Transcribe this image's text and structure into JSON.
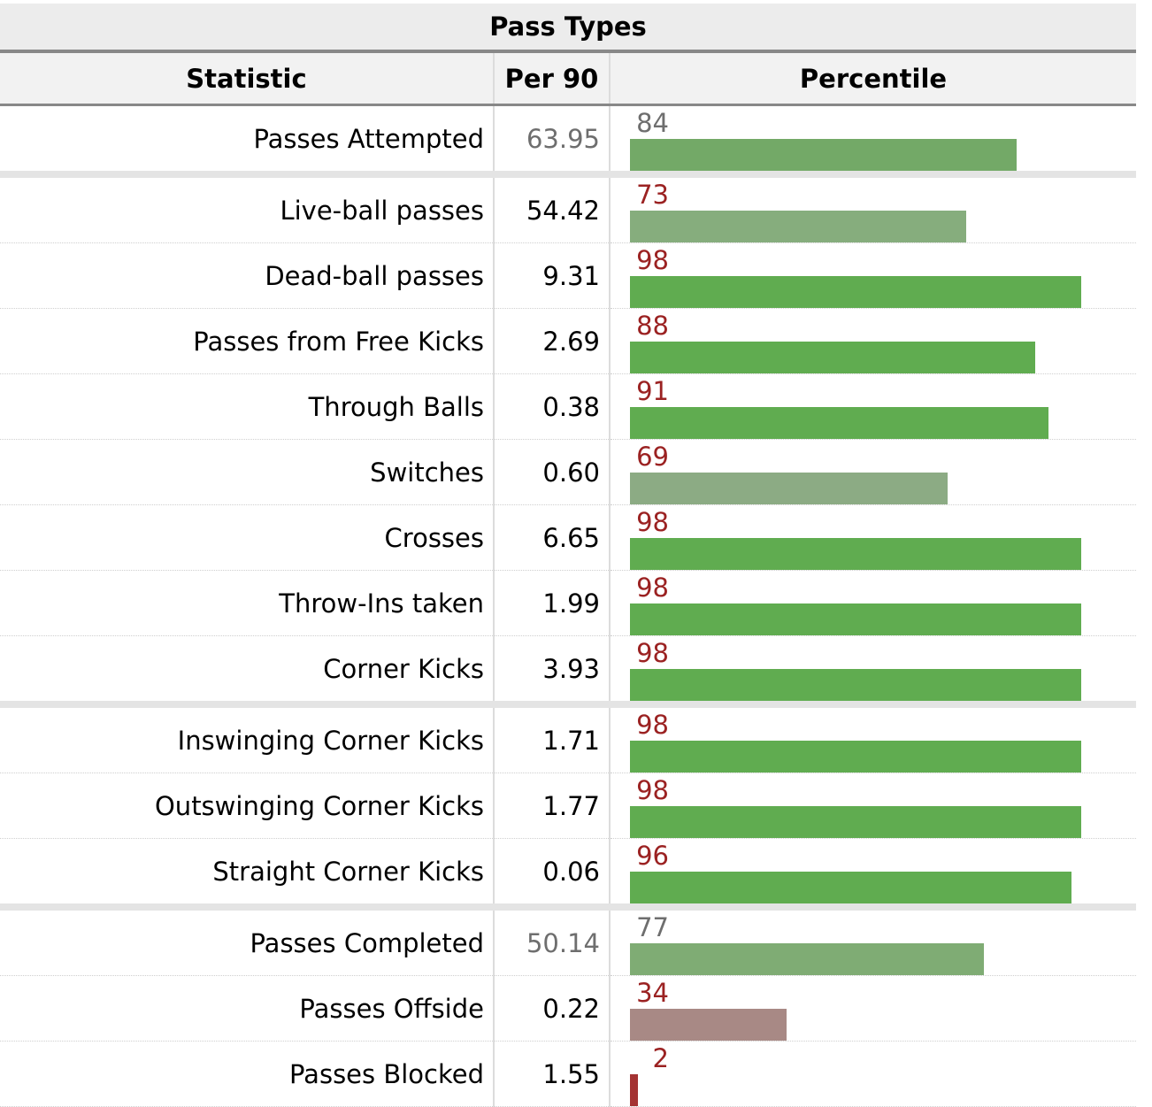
{
  "table": {
    "title": "Pass Types",
    "columns": [
      "Statistic",
      "Per 90",
      "Percentile"
    ],
    "colors": {
      "green_strong": "#60ac50",
      "green_mid": "#73a967",
      "green_light": "#86ad7d",
      "green_pale": "#8cab84",
      "mauve": "#a88985",
      "red": "#a43333",
      "percentile_text_red": "#9b2222",
      "percentile_text_gray": "#6e6e6e"
    },
    "rows": [
      {
        "statistic": "Passes Attempted",
        "per90": "63.95",
        "percentile": "84",
        "percentile_value": 84,
        "group_start": false,
        "muted": true,
        "bar_color": "#73a967"
      },
      {
        "statistic": "Live-ball passes",
        "per90": "54.42",
        "percentile": "73",
        "percentile_value": 73,
        "group_start": true,
        "muted": false,
        "bar_color": "#86ad7d"
      },
      {
        "statistic": "Dead-ball passes",
        "per90": "9.31",
        "percentile": "98",
        "percentile_value": 98,
        "group_start": false,
        "muted": false,
        "bar_color": "#60ac50"
      },
      {
        "statistic": "Passes from Free Kicks",
        "per90": "2.69",
        "percentile": "88",
        "percentile_value": 88,
        "group_start": false,
        "muted": false,
        "bar_color": "#60ac50"
      },
      {
        "statistic": "Through Balls",
        "per90": "0.38",
        "percentile": "91",
        "percentile_value": 91,
        "group_start": false,
        "muted": false,
        "bar_color": "#60ac50"
      },
      {
        "statistic": "Switches",
        "per90": "0.60",
        "percentile": "69",
        "percentile_value": 69,
        "group_start": false,
        "muted": false,
        "bar_color": "#8cab84"
      },
      {
        "statistic": "Crosses",
        "per90": "6.65",
        "percentile": "98",
        "percentile_value": 98,
        "group_start": false,
        "muted": false,
        "bar_color": "#60ac50"
      },
      {
        "statistic": "Throw-Ins taken",
        "per90": "1.99",
        "percentile": "98",
        "percentile_value": 98,
        "group_start": false,
        "muted": false,
        "bar_color": "#60ac50"
      },
      {
        "statistic": "Corner Kicks",
        "per90": "3.93",
        "percentile": "98",
        "percentile_value": 98,
        "group_start": false,
        "muted": false,
        "bar_color": "#60ac50"
      },
      {
        "statistic": "Inswinging Corner Kicks",
        "per90": "1.71",
        "percentile": "98",
        "percentile_value": 98,
        "group_start": true,
        "muted": false,
        "bar_color": "#60ac50"
      },
      {
        "statistic": "Outswinging Corner Kicks",
        "per90": "1.77",
        "percentile": "98",
        "percentile_value": 98,
        "group_start": false,
        "muted": false,
        "bar_color": "#60ac50"
      },
      {
        "statistic": "Straight Corner Kicks",
        "per90": "0.06",
        "percentile": "96",
        "percentile_value": 96,
        "group_start": false,
        "muted": false,
        "bar_color": "#60ac50"
      },
      {
        "statistic": "Passes Completed",
        "per90": "50.14",
        "percentile": "77",
        "percentile_value": 77,
        "group_start": true,
        "muted": true,
        "bar_color": "#7fac74"
      },
      {
        "statistic": "Passes Offside",
        "per90": "0.22",
        "percentile": "34",
        "percentile_value": 34,
        "group_start": false,
        "muted": false,
        "bar_color": "#a88985"
      },
      {
        "statistic": "Passes Blocked",
        "per90": "1.55",
        "percentile": "2",
        "percentile_value": 2,
        "group_start": false,
        "muted": false,
        "bar_color": "#a43333"
      }
    ]
  },
  "chart_data": {
    "type": "bar",
    "title": "Pass Types",
    "categories": [
      "Passes Attempted",
      "Live-ball passes",
      "Dead-ball passes",
      "Passes from Free Kicks",
      "Through Balls",
      "Switches",
      "Crosses",
      "Throw-Ins taken",
      "Corner Kicks",
      "Inswinging Corner Kicks",
      "Outswinging Corner Kicks",
      "Straight Corner Kicks",
      "Passes Completed",
      "Passes Offside",
      "Passes Blocked"
    ],
    "series": [
      {
        "name": "Per 90",
        "values": [
          63.95,
          54.42,
          9.31,
          2.69,
          0.38,
          0.6,
          6.65,
          1.99,
          3.93,
          1.71,
          1.77,
          0.06,
          50.14,
          0.22,
          1.55
        ]
      },
      {
        "name": "Percentile",
        "values": [
          84,
          73,
          98,
          88,
          91,
          69,
          98,
          98,
          98,
          98,
          98,
          96,
          77,
          34,
          2
        ]
      }
    ],
    "xlim": [
      0,
      100
    ]
  }
}
